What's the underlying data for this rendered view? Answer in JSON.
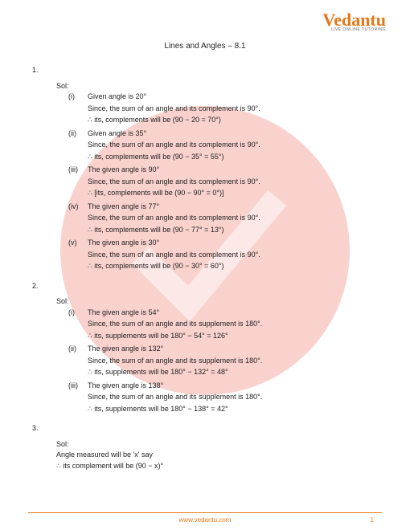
{
  "brand": {
    "name": "Vedantu",
    "tagline": "LIVE ONLINE TUTORING"
  },
  "title": "Lines and Angles – 8.1",
  "watermark": {
    "circle_color": "#e84a3a",
    "opacity": 0.25
  },
  "questions": [
    {
      "number": "1.",
      "sol_label": "Sol:",
      "items": [
        {
          "roman": "(i)",
          "lines": [
            "Given angle is 20°",
            "Since, the sum of an angle and its complement is 90°.",
            "∴ its, complements will be (90 − 20 = 70°)"
          ]
        },
        {
          "roman": "(ii)",
          "lines": [
            "Given angle is 35°",
            "Since, the sum of an angle and its complement is 90°.",
            "∴ its, complements will be (90 − 35° = 55°)"
          ]
        },
        {
          "roman": "(iii)",
          "lines": [
            "The given angle is 90°",
            "Since, the sum of an angle and its complement is 90°.",
            "∴ [its, complements will be (90 − 90° = 0°)]"
          ]
        },
        {
          "roman": "(iv)",
          "lines": [
            "The given angle is 77°",
            "Since, the sum of an angle and its complement is 90°.",
            "∴ its, complements will be (90 − 77° = 13°)"
          ]
        },
        {
          "roman": "(v)",
          "lines": [
            "The given angle is 30°",
            "Since, the sum of an angle and its complement is 90°.",
            "∴ its, complements will be (90 − 30° = 60°)"
          ]
        }
      ]
    },
    {
      "number": "2.",
      "sol_label": "Sol:",
      "items": [
        {
          "roman": "(i)",
          "lines": [
            "The given angle is 54°",
            "Since, the sum of an angle and its supplement is 180°.",
            "∴ its, supplements will be 180° − 54° = 126°"
          ]
        },
        {
          "roman": "(ii)",
          "lines": [
            "The given angle is 132°",
            "Since, the sum of an angle and its supplement is 180°.",
            "∴ its, supplements will be 180° − 132° = 48°"
          ]
        },
        {
          "roman": "(iii)",
          "lines": [
            "The given angle is 138°",
            "Since, the sum of an angle and its supplement is 180°.",
            "∴ its, supplements will be 180° − 138° = 42°"
          ]
        }
      ]
    },
    {
      "number": "3.",
      "sol_label": "Sol:",
      "body": [
        "Angle measured will be 'x' say",
        "∴ its complement will be (90 − x)°"
      ]
    }
  ],
  "footer": {
    "site": "www.vedantu.com",
    "page": "1"
  }
}
